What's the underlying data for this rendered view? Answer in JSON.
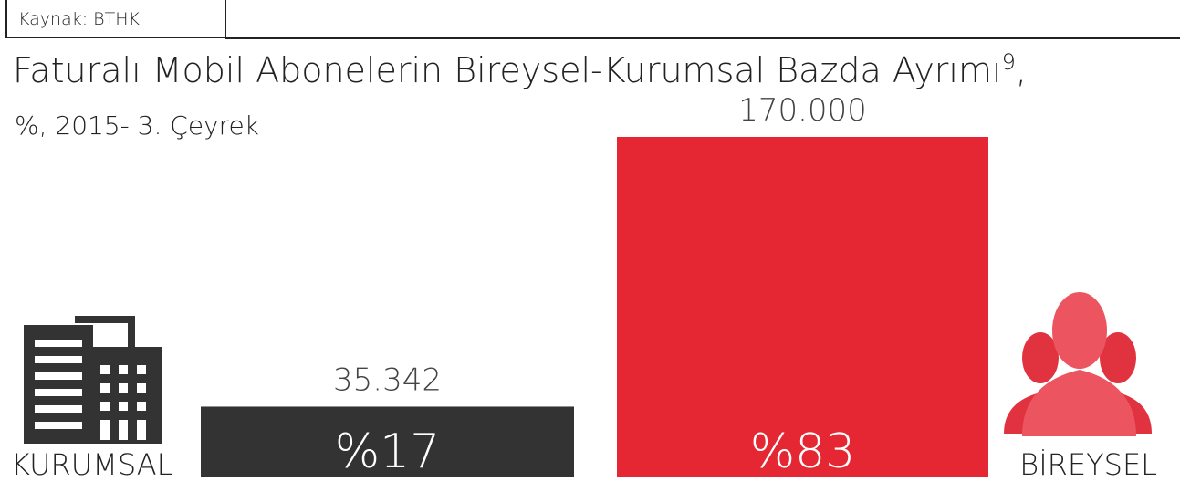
{
  "source": "Kaynak: BTHK",
  "chart_data": {
    "type": "bar",
    "title": "Faturalı Mobil Abonelerin Bireysel-Kurumsal Bazda Ayrımı",
    "title_footnote": "9",
    "title_end": ",",
    "subtitle": "%, 2015- 3. Çeyrek",
    "categories": [
      "KURUMSAL",
      "BİREYSEL"
    ],
    "values": [
      35342,
      170000
    ],
    "value_labels": [
      "35.342",
      "170.000"
    ],
    "shares": [
      17,
      83
    ],
    "share_labels": [
      "%17",
      "%83"
    ],
    "colors": [
      "#333333",
      "#e52733"
    ]
  }
}
